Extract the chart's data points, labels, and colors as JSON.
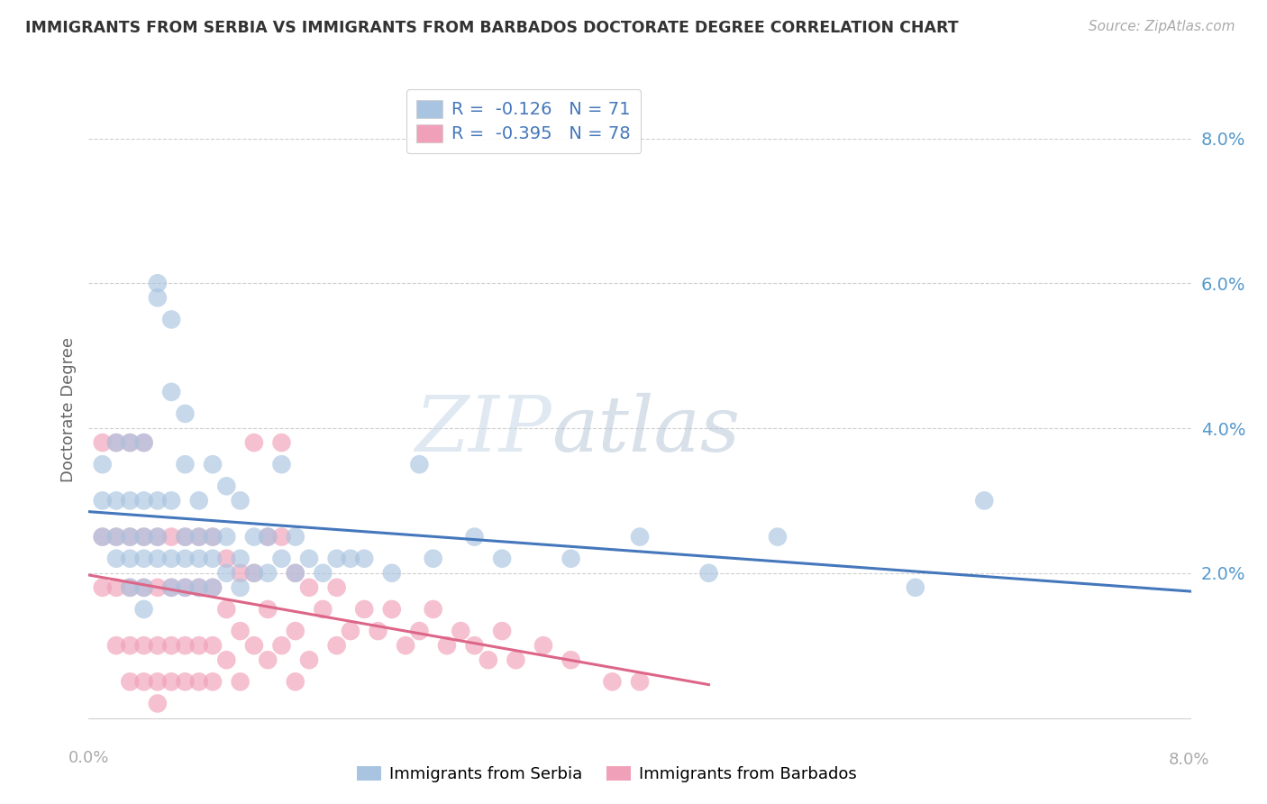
{
  "title": "IMMIGRANTS FROM SERBIA VS IMMIGRANTS FROM BARBADOS DOCTORATE DEGREE CORRELATION CHART",
  "source": "Source: ZipAtlas.com",
  "ylabel": "Doctorate Degree",
  "right_yticks": [
    "8.0%",
    "6.0%",
    "4.0%",
    "2.0%"
  ],
  "right_ytick_vals": [
    0.08,
    0.06,
    0.04,
    0.02
  ],
  "xlim": [
    0.0,
    0.08
  ],
  "ylim": [
    -0.003,
    0.088
  ],
  "serbia_R": -0.126,
  "serbia_N": 71,
  "barbados_R": -0.395,
  "barbados_N": 78,
  "serbia_color": "#a8c4e0",
  "barbados_color": "#f0a0b8",
  "serbia_line_color": "#4477bb",
  "barbados_line_color": "#dd6688",
  "title_color": "#333333",
  "source_color": "#888888",
  "right_axis_color": "#5599cc",
  "serbia_x": [
    0.001,
    0.001,
    0.001,
    0.002,
    0.002,
    0.002,
    0.002,
    0.003,
    0.003,
    0.003,
    0.003,
    0.003,
    0.004,
    0.004,
    0.004,
    0.004,
    0.004,
    0.004,
    0.005,
    0.005,
    0.005,
    0.005,
    0.005,
    0.006,
    0.006,
    0.006,
    0.006,
    0.006,
    0.007,
    0.007,
    0.007,
    0.007,
    0.007,
    0.008,
    0.008,
    0.008,
    0.008,
    0.009,
    0.009,
    0.009,
    0.009,
    0.01,
    0.01,
    0.01,
    0.011,
    0.011,
    0.011,
    0.012,
    0.012,
    0.013,
    0.013,
    0.014,
    0.014,
    0.015,
    0.015,
    0.016,
    0.017,
    0.018,
    0.019,
    0.02,
    0.022,
    0.024,
    0.025,
    0.028,
    0.03,
    0.035,
    0.04,
    0.045,
    0.05,
    0.06,
    0.065
  ],
  "serbia_y": [
    0.025,
    0.03,
    0.035,
    0.025,
    0.03,
    0.038,
    0.022,
    0.025,
    0.03,
    0.038,
    0.022,
    0.018,
    0.025,
    0.03,
    0.038,
    0.022,
    0.018,
    0.015,
    0.025,
    0.06,
    0.058,
    0.03,
    0.022,
    0.045,
    0.055,
    0.03,
    0.022,
    0.018,
    0.042,
    0.025,
    0.035,
    0.022,
    0.018,
    0.025,
    0.03,
    0.022,
    0.018,
    0.025,
    0.035,
    0.022,
    0.018,
    0.032,
    0.025,
    0.02,
    0.03,
    0.022,
    0.018,
    0.025,
    0.02,
    0.025,
    0.02,
    0.035,
    0.022,
    0.025,
    0.02,
    0.022,
    0.02,
    0.022,
    0.022,
    0.022,
    0.02,
    0.035,
    0.022,
    0.025,
    0.022,
    0.022,
    0.025,
    0.02,
    0.025,
    0.018,
    0.03
  ],
  "barbados_x": [
    0.001,
    0.001,
    0.001,
    0.002,
    0.002,
    0.002,
    0.002,
    0.003,
    0.003,
    0.003,
    0.003,
    0.003,
    0.004,
    0.004,
    0.004,
    0.004,
    0.004,
    0.005,
    0.005,
    0.005,
    0.005,
    0.005,
    0.006,
    0.006,
    0.006,
    0.006,
    0.007,
    0.007,
    0.007,
    0.007,
    0.008,
    0.008,
    0.008,
    0.008,
    0.009,
    0.009,
    0.009,
    0.009,
    0.01,
    0.01,
    0.01,
    0.011,
    0.011,
    0.011,
    0.012,
    0.012,
    0.012,
    0.013,
    0.013,
    0.013,
    0.014,
    0.014,
    0.014,
    0.015,
    0.015,
    0.015,
    0.016,
    0.016,
    0.017,
    0.018,
    0.018,
    0.019,
    0.02,
    0.021,
    0.022,
    0.023,
    0.024,
    0.025,
    0.026,
    0.027,
    0.028,
    0.029,
    0.03,
    0.031,
    0.033,
    0.035,
    0.038,
    0.04
  ],
  "barbados_y": [
    0.038,
    0.025,
    0.018,
    0.038,
    0.025,
    0.018,
    0.01,
    0.038,
    0.025,
    0.018,
    0.01,
    0.005,
    0.038,
    0.025,
    0.018,
    0.01,
    0.005,
    0.025,
    0.018,
    0.01,
    0.005,
    0.002,
    0.025,
    0.018,
    0.01,
    0.005,
    0.025,
    0.018,
    0.01,
    0.005,
    0.025,
    0.018,
    0.01,
    0.005,
    0.025,
    0.018,
    0.01,
    0.005,
    0.022,
    0.015,
    0.008,
    0.02,
    0.012,
    0.005,
    0.038,
    0.02,
    0.01,
    0.025,
    0.015,
    0.008,
    0.038,
    0.025,
    0.01,
    0.02,
    0.012,
    0.005,
    0.018,
    0.008,
    0.015,
    0.018,
    0.01,
    0.012,
    0.015,
    0.012,
    0.015,
    0.01,
    0.012,
    0.015,
    0.01,
    0.012,
    0.01,
    0.008,
    0.012,
    0.008,
    0.01,
    0.008,
    0.005,
    0.005
  ]
}
